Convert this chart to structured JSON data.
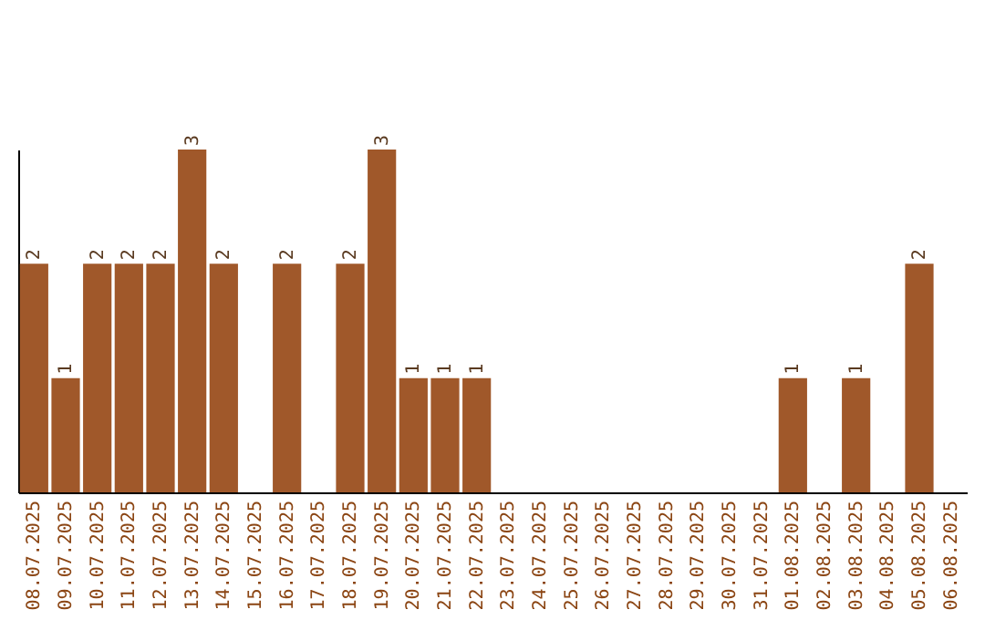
{
  "chart_data": {
    "type": "bar",
    "categories": [
      "08.07.2025",
      "09.07.2025",
      "10.07.2025",
      "11.07.2025",
      "12.07.2025",
      "13.07.2025",
      "14.07.2025",
      "15.07.2025",
      "16.07.2025",
      "17.07.2025",
      "18.07.2025",
      "19.07.2025",
      "20.07.2025",
      "21.07.2025",
      "22.07.2025",
      "23.07.2025",
      "24.07.2025",
      "25.07.2025",
      "26.07.2025",
      "27.07.2025",
      "28.07.2025",
      "29.07.2025",
      "30.07.2025",
      "31.07.2025",
      "01.08.2025",
      "02.08.2025",
      "03.08.2025",
      "04.08.2025",
      "05.08.2025",
      "06.08.2025"
    ],
    "values": [
      2,
      1,
      2,
      2,
      2,
      3,
      2,
      0,
      2,
      0,
      2,
      3,
      1,
      1,
      1,
      0,
      0,
      0,
      0,
      0,
      0,
      0,
      0,
      0,
      1,
      0,
      1,
      0,
      2,
      0
    ],
    "value_labels": [
      "2",
      "1",
      "2",
      "2",
      "2",
      "3",
      "2",
      null,
      "2",
      null,
      "2",
      "3",
      "1",
      "1",
      "1",
      null,
      null,
      null,
      null,
      null,
      null,
      null,
      null,
      null,
      "1",
      null,
      "1",
      null,
      "2",
      null
    ],
    "color": "#a0582a",
    "tick_labels": "x",
    "grid": false
  }
}
